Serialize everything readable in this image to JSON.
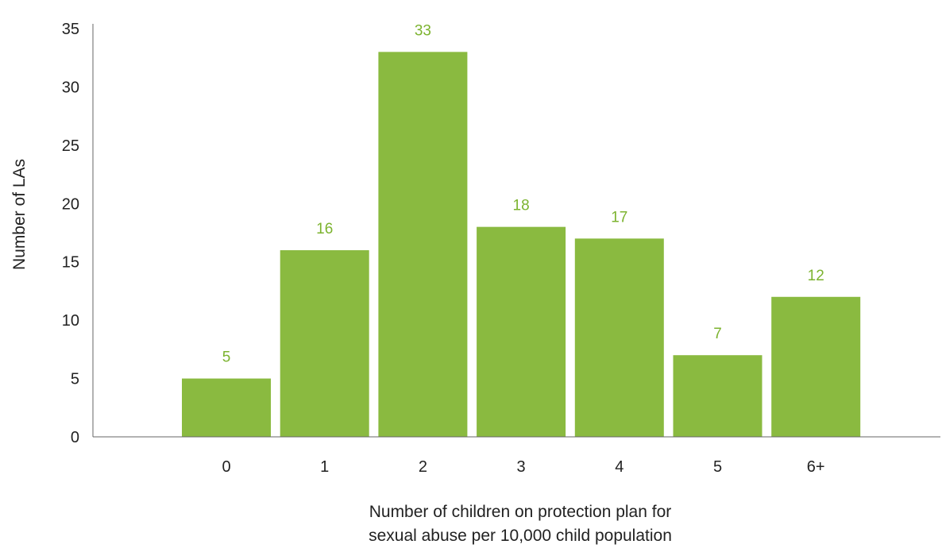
{
  "chart_data": {
    "type": "bar",
    "title": "",
    "xlabel": "Number of children on protection plan for sexual abuse per 10,000 child population",
    "xlabel_lines": [
      "Number of children on protection plan for",
      "sexual abuse per 10,000 child population"
    ],
    "ylabel": "Number of LAs",
    "categories": [
      "0",
      "1",
      "2",
      "3",
      "4",
      "5",
      "6+"
    ],
    "values": [
      5,
      16,
      33,
      18,
      17,
      7,
      12
    ],
    "data_labels": [
      "5",
      "16",
      "33",
      "18",
      "17",
      "7",
      "12"
    ],
    "ylim": [
      0,
      35
    ],
    "yticks": [
      "0",
      "5",
      "10",
      "15",
      "20",
      "25",
      "30",
      "35"
    ],
    "grid": false,
    "legend": "none",
    "colors": {
      "bar": "#8aba40",
      "data_label": "#7cb32f",
      "axis": "#666666",
      "text": "#222222"
    }
  }
}
